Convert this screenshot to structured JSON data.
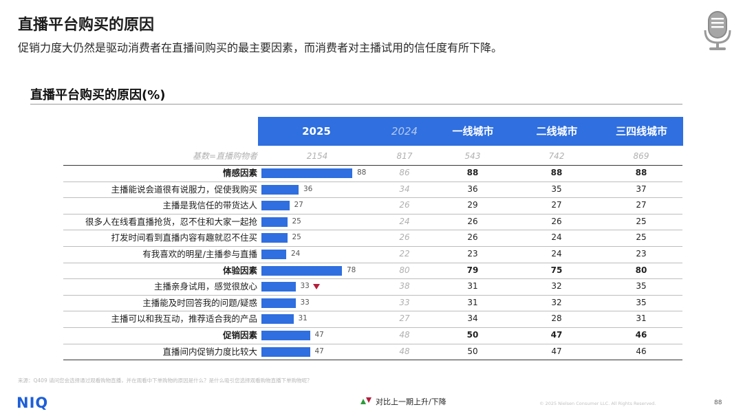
{
  "header": {
    "title": "直播平台购买的原因",
    "subtitle": "促销力度大仍然是驱动消费者在直播间购买的最主要因素，而消费者对主播试用的信任度有所下降。"
  },
  "chart_data": {
    "type": "bar",
    "title": "直播平台购买的原因(%)",
    "columns": [
      "2025",
      "2024",
      "一线城市",
      "二线城市",
      "三四线城市"
    ],
    "base": {
      "label": "基数=直播购物者",
      "values": [
        "2154",
        "817",
        "543",
        "742",
        "869"
      ]
    },
    "xlim": [
      0,
      100
    ],
    "rows": [
      {
        "label": "情感因素",
        "category": true,
        "v2025": 88,
        "v2024": 86,
        "t1": 88,
        "t2": 88,
        "t3": 88
      },
      {
        "label": "主播能说会道很有说服力，促使我购买",
        "category": false,
        "v2025": 36,
        "v2024": 34,
        "t1": 36,
        "t2": 35,
        "t3": 37
      },
      {
        "label": "主播是我信任的带货达人",
        "category": false,
        "v2025": 27,
        "v2024": 26,
        "t1": 29,
        "t2": 27,
        "t3": 27
      },
      {
        "label": "很多人在线看直播抢货，忍不住和大家一起抢",
        "category": false,
        "v2025": 25,
        "v2024": 24,
        "t1": 26,
        "t2": 26,
        "t3": 25
      },
      {
        "label": "打发时间看到直播内容有趣就忍不住买",
        "category": false,
        "v2025": 25,
        "v2024": 26,
        "t1": 26,
        "t2": 24,
        "t3": 25
      },
      {
        "label": "有我喜欢的明星/主播参与直播",
        "category": false,
        "v2025": 24,
        "v2024": 22,
        "t1": 23,
        "t2": 24,
        "t3": 23
      },
      {
        "label": "体验因素",
        "category": true,
        "v2025": 78,
        "v2024": 80,
        "t1": 79,
        "t2": 75,
        "t3": 80
      },
      {
        "label": "主播亲身试用，感觉很放心",
        "category": false,
        "v2025": 33,
        "v2024": 38,
        "t1": 31,
        "t2": 32,
        "t3": 35,
        "flag": "down"
      },
      {
        "label": "主播能及时回答我的问题/疑惑",
        "category": false,
        "v2025": 33,
        "v2024": 33,
        "t1": 31,
        "t2": 32,
        "t3": 35
      },
      {
        "label": "主播可以和我互动，推荐适合我的产品",
        "category": false,
        "v2025": 31,
        "v2024": 27,
        "t1": 34,
        "t2": 28,
        "t3": 31
      },
      {
        "label": "促销因素",
        "category": true,
        "v2025": 47,
        "v2024": 48,
        "t1": 50,
        "t2": 47,
        "t3": 46
      },
      {
        "label": "直播间内促销力度比较大",
        "category": false,
        "v2025": 47,
        "v2024": 48,
        "t1": 50,
        "t2": 47,
        "t3": 46
      }
    ]
  },
  "footer": {
    "source": "来源：Q409 请问您会选择通过观看购物直播，并在观看中下单购物的原因是什么？是什么吸引您选择观看购物直播下单购物呢？",
    "logo": "NIQ",
    "legend": "对比上一期上升/下降",
    "copyright": "© 2025 Nielsen Consumer LLC. All Rights Reserved.",
    "page": "88"
  },
  "colors": {
    "accent": "#2f6fdf",
    "down": "#b41e3b",
    "up": "#2e9a3a",
    "logo": "#1d5fd8"
  },
  "icons": {
    "mic": "microphone-icon",
    "legend": "up-down-arrow-icon"
  }
}
